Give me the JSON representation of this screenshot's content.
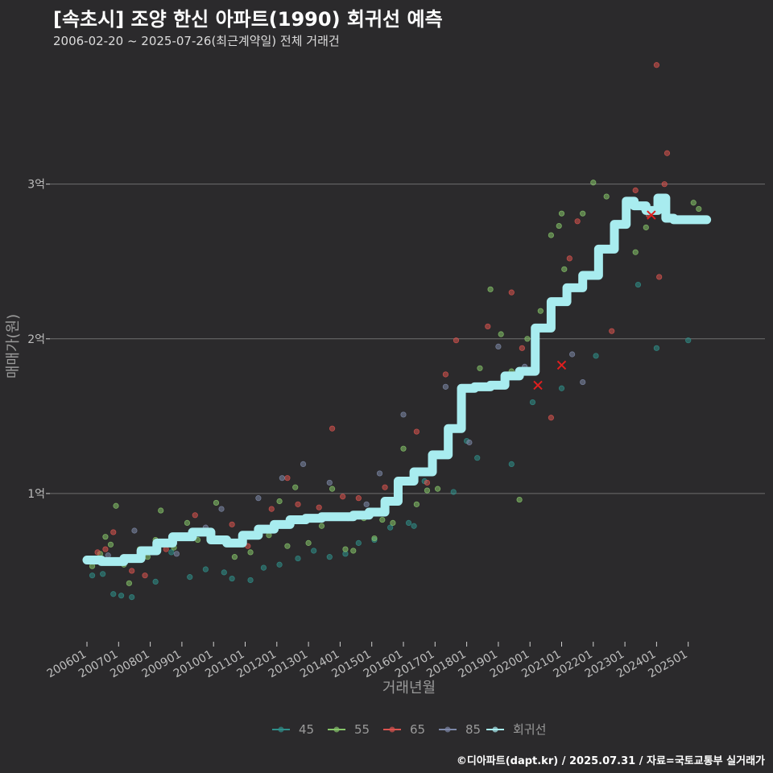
{
  "header": {
    "title": "[속초시] 조양 한신 아파트(1990) 회귀선 예측",
    "subtitle": "2006-02-20 ~ 2025-07-26(최근계약일) 전체 거래건"
  },
  "footer": {
    "credit": "©디아파트(dapt.kr) / 2025.07.31 / 자료=국토교통부 실거래가"
  },
  "colors": {
    "background": "#2b2a2c",
    "grid": "#6e6e6e",
    "s45": "#2f8f8a",
    "s55": "#86c46a",
    "s65": "#d9534f",
    "s85": "#7d88a8",
    "regression": "#a8ecef",
    "cancelled_marker": "#e01f1f"
  },
  "chart_data": {
    "type": "scatter",
    "x_type": "date",
    "xlabel": "거래년월",
    "ylabel": "매매가(원)",
    "ylim": [
      0,
      38000
    ],
    "y_unit": "만원",
    "y_ticks": [
      {
        "value": 10000,
        "label": "1억"
      },
      {
        "value": 20000,
        "label": "2억"
      },
      {
        "value": 30000,
        "label": "3억"
      }
    ],
    "x_ticks": [
      "200601",
      "200701",
      "200801",
      "200901",
      "201001",
      "201101",
      "201201",
      "201301",
      "201401",
      "201501",
      "201601",
      "201701",
      "201801",
      "201901",
      "202001",
      "202101",
      "202201",
      "202301",
      "202401",
      "202501"
    ],
    "grid": "horizontal",
    "legend_position": "bottom",
    "legend": [
      "45",
      "55",
      "65",
      "85",
      "회귀선"
    ],
    "series": [
      {
        "name": "45",
        "color": "#2f8f8a",
        "points": [
          [
            "2006-03",
            4700
          ],
          [
            "2006-07",
            4800
          ],
          [
            "2006-11",
            3500
          ],
          [
            "2007-02",
            3400
          ],
          [
            "2007-06",
            3300
          ],
          [
            "2008-03",
            4300
          ],
          [
            "2008-09",
            6200
          ],
          [
            "2009-04",
            4600
          ],
          [
            "2009-10",
            5100
          ],
          [
            "2010-05",
            4900
          ],
          [
            "2010-08",
            4500
          ],
          [
            "2011-03",
            4400
          ],
          [
            "2011-08",
            5200
          ],
          [
            "2012-02",
            5400
          ],
          [
            "2012-09",
            5800
          ],
          [
            "2013-03",
            6300
          ],
          [
            "2013-09",
            5900
          ],
          [
            "2014-03",
            6100
          ],
          [
            "2014-08",
            6800
          ],
          [
            "2015-02",
            7000
          ],
          [
            "2015-08",
            7800
          ],
          [
            "2016-03",
            8100
          ],
          [
            "2016-05",
            7900
          ],
          [
            "2016-09",
            10800
          ],
          [
            "2017-08",
            10100
          ],
          [
            "2018-01",
            13400
          ],
          [
            "2018-05",
            12300
          ],
          [
            "2019-06",
            11900
          ],
          [
            "2020-02",
            15900
          ],
          [
            "2021-01",
            16800
          ],
          [
            "2022-02",
            18900
          ],
          [
            "2023-06",
            23500
          ],
          [
            "2025-01",
            19900
          ],
          [
            "2024-01",
            19400
          ]
        ]
      },
      {
        "name": "55",
        "color": "#86c46a",
        "points": [
          [
            "2006-03",
            5300
          ],
          [
            "2006-06",
            6100
          ],
          [
            "2006-08",
            7200
          ],
          [
            "2006-10",
            6700
          ],
          [
            "2006-12",
            9200
          ],
          [
            "2007-03",
            5400
          ],
          [
            "2007-05",
            4200
          ],
          [
            "2007-09",
            6400
          ],
          [
            "2007-12",
            5900
          ],
          [
            "2008-03",
            7000
          ],
          [
            "2008-05",
            8900
          ],
          [
            "2008-10",
            6500
          ],
          [
            "2009-03",
            8100
          ],
          [
            "2009-07",
            7000
          ],
          [
            "2010-02",
            9400
          ],
          [
            "2010-09",
            5900
          ],
          [
            "2011-03",
            6200
          ],
          [
            "2011-10",
            7300
          ],
          [
            "2012-02",
            9500
          ],
          [
            "2012-05",
            6600
          ],
          [
            "2012-08",
            10400
          ],
          [
            "2013-01",
            6800
          ],
          [
            "2013-06",
            7900
          ],
          [
            "2013-10",
            10300
          ],
          [
            "2014-03",
            6400
          ],
          [
            "2014-06",
            6300
          ],
          [
            "2014-10",
            8400
          ],
          [
            "2015-02",
            7100
          ],
          [
            "2015-05",
            8300
          ],
          [
            "2015-09",
            8100
          ],
          [
            "2016-01",
            12900
          ],
          [
            "2016-06",
            9300
          ],
          [
            "2016-10",
            10200
          ],
          [
            "2017-01",
            12500
          ],
          [
            "2017-02",
            10300
          ],
          [
            "2018-06",
            18100
          ],
          [
            "2018-10",
            23200
          ],
          [
            "2019-02",
            20300
          ],
          [
            "2019-06",
            17900
          ],
          [
            "2019-09",
            9600
          ],
          [
            "2019-12",
            20000
          ],
          [
            "2020-05",
            21800
          ],
          [
            "2020-09",
            26700
          ],
          [
            "2020-12",
            27300
          ],
          [
            "2021-01",
            28100
          ],
          [
            "2021-02",
            24500
          ],
          [
            "2021-09",
            28100
          ],
          [
            "2022-01",
            30100
          ],
          [
            "2022-06",
            29200
          ],
          [
            "2023-05",
            25600
          ],
          [
            "2023-09",
            27200
          ],
          [
            "2025-03",
            28800
          ],
          [
            "2025-05",
            28400
          ]
        ]
      },
      {
        "name": "65",
        "color": "#d9534f",
        "points": [
          [
            "2006-05",
            6200
          ],
          [
            "2006-08",
            6400
          ],
          [
            "2006-11",
            7500
          ],
          [
            "2007-03",
            5900
          ],
          [
            "2007-06",
            5000
          ],
          [
            "2007-11",
            4700
          ],
          [
            "2008-07",
            6400
          ],
          [
            "2009-06",
            8600
          ],
          [
            "2009-12",
            7200
          ],
          [
            "2010-08",
            8000
          ],
          [
            "2011-02",
            6600
          ],
          [
            "2011-11",
            9000
          ],
          [
            "2012-05",
            11000
          ],
          [
            "2012-09",
            9300
          ],
          [
            "2013-05",
            9100
          ],
          [
            "2013-10",
            14200
          ],
          [
            "2014-02",
            9800
          ],
          [
            "2014-08",
            9700
          ],
          [
            "2015-06",
            10400
          ],
          [
            "2016-06",
            14000
          ],
          [
            "2016-10",
            10700
          ],
          [
            "2017-05",
            17700
          ],
          [
            "2017-09",
            19900
          ],
          [
            "2018-09",
            20800
          ],
          [
            "2019-06",
            23000
          ],
          [
            "2019-10",
            19400
          ],
          [
            "2020-09",
            14900
          ],
          [
            "2021-04",
            25200
          ],
          [
            "2021-07",
            27600
          ],
          [
            "2022-08",
            20500
          ],
          [
            "2023-05",
            29600
          ],
          [
            "2023-10",
            28000
          ],
          [
            "2024-02",
            24000
          ],
          [
            "2024-05",
            32000
          ],
          [
            "2024-04",
            30000
          ],
          [
            "2024-01",
            37700
          ]
        ]
      },
      {
        "name": "85",
        "color": "#7d88a8",
        "points": [
          [
            "2006-09",
            6000
          ],
          [
            "2007-07",
            7600
          ],
          [
            "2008-11",
            6100
          ],
          [
            "2009-10",
            7800
          ],
          [
            "2010-04",
            9000
          ],
          [
            "2011-06",
            9700
          ],
          [
            "2012-03",
            11000
          ],
          [
            "2012-11",
            11900
          ],
          [
            "2013-09",
            10700
          ],
          [
            "2014-04",
            8400
          ],
          [
            "2014-11",
            9300
          ],
          [
            "2015-04",
            11300
          ],
          [
            "2016-01",
            15100
          ],
          [
            "2016-08",
            11500
          ],
          [
            "2017-05",
            16900
          ],
          [
            "2018-02",
            13300
          ],
          [
            "2019-01",
            19500
          ],
          [
            "2019-11",
            18200
          ],
          [
            "2021-05",
            19000
          ],
          [
            "2022-03",
            24900
          ],
          [
            "2023-08",
            28400
          ],
          [
            "2021-09",
            17200
          ]
        ]
      },
      {
        "name": "회귀선",
        "color": "#a8ecef",
        "points": [
          [
            "2006-01",
            5700
          ],
          [
            "2006-12",
            5600
          ],
          [
            "2007-06",
            5800
          ],
          [
            "2008-01",
            6300
          ],
          [
            "2008-06",
            6800
          ],
          [
            "2009-01",
            7200
          ],
          [
            "2009-09",
            7500
          ],
          [
            "2010-03",
            7000
          ],
          [
            "2010-09",
            6800
          ],
          [
            "2011-03",
            7300
          ],
          [
            "2011-09",
            7700
          ],
          [
            "2012-03",
            8000
          ],
          [
            "2012-09",
            8300
          ],
          [
            "2013-03",
            8400
          ],
          [
            "2013-09",
            8500
          ],
          [
            "2014-03",
            8500
          ],
          [
            "2014-09",
            8600
          ],
          [
            "2015-03",
            8800
          ],
          [
            "2015-09",
            9500
          ],
          [
            "2016-01",
            10800
          ],
          [
            "2016-09",
            11400
          ],
          [
            "2017-03",
            12500
          ],
          [
            "2017-09",
            14200
          ],
          [
            "2018-01",
            16800
          ],
          [
            "2018-07",
            16900
          ],
          [
            "2019-01",
            17000
          ],
          [
            "2019-06",
            17600
          ],
          [
            "2019-12",
            17900
          ],
          [
            "2020-06",
            20700
          ],
          [
            "2020-12",
            22400
          ],
          [
            "2021-06",
            23300
          ],
          [
            "2021-12",
            24100
          ],
          [
            "2022-06",
            25800
          ],
          [
            "2022-12",
            27400
          ],
          [
            "2023-03",
            28900
          ],
          [
            "2023-06",
            28600
          ],
          [
            "2023-12",
            28300
          ],
          [
            "2024-03",
            29100
          ],
          [
            "2024-06",
            27800
          ],
          [
            "2024-09",
            27700
          ],
          [
            "2025-02",
            27700
          ],
          [
            "2025-08",
            27700
          ]
        ]
      }
    ],
    "cancelled_deals": [
      [
        "2020-04",
        17000
      ],
      [
        "2021-01",
        18300
      ],
      [
        "2023-11",
        28000
      ]
    ]
  }
}
